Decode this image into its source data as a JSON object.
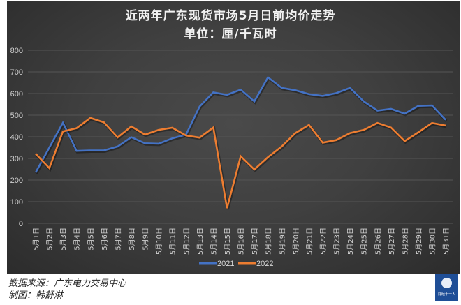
{
  "title": "近两年广东现货市场5月日前均价走势",
  "subtitle": "单位：厘/千瓦时",
  "footer": {
    "source": "数据来源：广东电力交易中心",
    "author": "制图：韩舒淋"
  },
  "logo": {
    "text": "财经十一人"
  },
  "colors": {
    "series_2021": "#4472c4",
    "series_2022": "#ed7d31",
    "background": "#3c3c3c",
    "grid": "#555555"
  },
  "chart_data": {
    "type": "line",
    "title": "近两年广东现货市场5月日前均价走势",
    "subtitle": "单位：厘/千瓦时",
    "xlabel": "",
    "ylabel": "",
    "ylim": [
      0,
      800
    ],
    "yticks": [
      0,
      100,
      200,
      300,
      400,
      500,
      600,
      700,
      800
    ],
    "grid": true,
    "legend_position": "bottom",
    "categories": [
      "5月1日",
      "5月2日",
      "5月3日",
      "5月4日",
      "5月5日",
      "5月6日",
      "5月7日",
      "5月8日",
      "5月9日",
      "5月10日",
      "5月11日",
      "5月12日",
      "5月13日",
      "5月14日",
      "5月15日",
      "5月16日",
      "5月17日",
      "5月18日",
      "5月19日",
      "5月20日",
      "5月21日",
      "5月22日",
      "5月23日",
      "5月24日",
      "5月25日",
      "5月26日",
      "5月27日",
      "5月28日",
      "5月29日",
      "5月30日",
      "5月31日"
    ],
    "series": [
      {
        "name": "2021",
        "color": "#4472c4",
        "values": [
          235,
          350,
          465,
          335,
          337,
          337,
          355,
          398,
          370,
          368,
          393,
          410,
          540,
          605,
          594,
          618,
          564,
          675,
          626,
          615,
          597,
          589,
          602,
          626,
          564,
          521,
          529,
          507,
          543,
          545,
          478
        ]
      },
      {
        "name": "2022",
        "color": "#ed7d31",
        "values": [
          322,
          255,
          425,
          440,
          487,
          467,
          397,
          448,
          410,
          432,
          442,
          406,
          396,
          443,
          70,
          310,
          249,
          306,
          355,
          417,
          455,
          373,
          385,
          417,
          432,
          464,
          443,
          380,
          421,
          464,
          452
        ]
      }
    ]
  }
}
